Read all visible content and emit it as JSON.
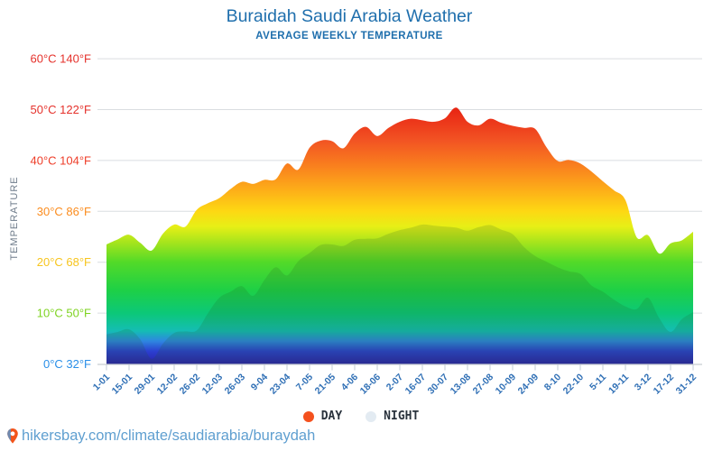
{
  "header": {
    "title": "Buraidah Saudi Arabia Weather",
    "subtitle": "AVERAGE WEEKLY TEMPERATURE"
  },
  "footer": {
    "url": "hikersbay.com/climate/saudiarabia/buraydah",
    "pin_icon": "map-pin-icon"
  },
  "colors": {
    "title_blue": "#1f6fad",
    "x_label_blue": "#2f6fb5",
    "y_axis_title_gray": "#6e7b8a",
    "footer_blue": "#5f9fd0",
    "grid_gray": "#dadde0",
    "axis_gray": "#c8cdd2",
    "legend_text": "#2a333d"
  },
  "chart_data": {
    "type": "area",
    "title": "Buraidah Saudi Arabia Weather",
    "subtitle": "AVERAGE WEEKLY TEMPERATURE",
    "ylabel": "TEMPERATURE",
    "unit": "°C",
    "ylim": [
      0,
      60
    ],
    "grid": true,
    "legend_position": "bottom",
    "x_tick_labels": [
      "1-01",
      "15-01",
      "29-01",
      "12-02",
      "26-02",
      "12-03",
      "26-03",
      "9-04",
      "23-04",
      "7-05",
      "21-05",
      "4-06",
      "18-06",
      "2-07",
      "16-07",
      "30-07",
      "13-08",
      "27-08",
      "10-09",
      "24-09",
      "8-10",
      "22-10",
      "5-11",
      "19-11",
      "3-12",
      "17-12",
      "31-12"
    ],
    "weeks_per_tick": 2,
    "y_ticks": [
      {
        "c": "0°C",
        "f": "32°F",
        "t": 0,
        "color": "#2a8fe8"
      },
      {
        "c": "10°C",
        "f": "50°F",
        "t": 10,
        "color": "#7ed321"
      },
      {
        "c": "20°C",
        "f": "68°F",
        "t": 20,
        "color": "#f7c51e"
      },
      {
        "c": "30°C",
        "f": "86°F",
        "t": 30,
        "color": "#fb8c1e"
      },
      {
        "c": "40°C",
        "f": "104°F",
        "t": 40,
        "color": "#ee3d28"
      },
      {
        "c": "50°C",
        "f": "122°F",
        "t": 50,
        "color": "#e5312b"
      },
      {
        "c": "60°C",
        "f": "140°F",
        "t": 60,
        "color": "#e5312b"
      }
    ],
    "series": [
      {
        "name": "DAY",
        "color": "#f4511e",
        "values": [
          23.5,
          24.5,
          25.4,
          23.8,
          22.3,
          25.6,
          27.4,
          27.0,
          30.3,
          31.6,
          32.6,
          34.4,
          35.8,
          35.4,
          36.2,
          36.3,
          39.4,
          38.2,
          42.5,
          43.9,
          43.8,
          42.4,
          45.3,
          46.6,
          44.8,
          46.4,
          47.6,
          48.2,
          47.9,
          47.6,
          48.3,
          50.4,
          47.6,
          46.9,
          48.2,
          47.4,
          46.8,
          46.4,
          46.2,
          42.6,
          39.9,
          40.1,
          39.4,
          37.8,
          35.9,
          34.1,
          32.2,
          24.9,
          25.3,
          21.7,
          23.7,
          24.3,
          26.0
        ]
      },
      {
        "name": "NIGHT",
        "color": "#e3ebf2",
        "values": [
          5.8,
          6.3,
          6.8,
          4.8,
          1.0,
          4.0,
          6.1,
          6.4,
          6.6,
          10.0,
          13.0,
          14.2,
          15.3,
          13.4,
          16.5,
          19.0,
          17.4,
          20.2,
          21.8,
          23.4,
          23.5,
          23.2,
          24.4,
          24.6,
          24.7,
          25.6,
          26.3,
          26.8,
          27.4,
          27.2,
          27.0,
          26.8,
          26.2,
          26.9,
          27.3,
          26.4,
          25.5,
          23.0,
          21.2,
          20.1,
          19.0,
          18.2,
          17.7,
          15.4,
          14.2,
          12.6,
          11.3,
          10.8,
          13.0,
          9.0,
          6.3,
          8.8,
          10.2
        ]
      }
    ],
    "gradient": [
      {
        "t": 0.0,
        "color": "#2b21a8"
      },
      {
        "t": 2.5,
        "color": "#2b3fd0"
      },
      {
        "t": 4.5,
        "color": "#2e86e0"
      },
      {
        "t": 6.5,
        "color": "#14bdb4"
      },
      {
        "t": 10.0,
        "color": "#0cc878"
      },
      {
        "t": 14.5,
        "color": "#1ed046"
      },
      {
        "t": 20.0,
        "color": "#52da28"
      },
      {
        "t": 24.0,
        "color": "#a8e51c"
      },
      {
        "t": 27.0,
        "color": "#e7ef16"
      },
      {
        "t": 30.0,
        "color": "#fdd813"
      },
      {
        "t": 34.5,
        "color": "#fdab19"
      },
      {
        "t": 39.0,
        "color": "#f97f1e"
      },
      {
        "t": 44.0,
        "color": "#f25323"
      },
      {
        "t": 49.0,
        "color": "#ea2d17"
      },
      {
        "t": 52.0,
        "color": "#e31b0c"
      }
    ],
    "night_overlay": "rgba(30,90,30,0.16)"
  }
}
